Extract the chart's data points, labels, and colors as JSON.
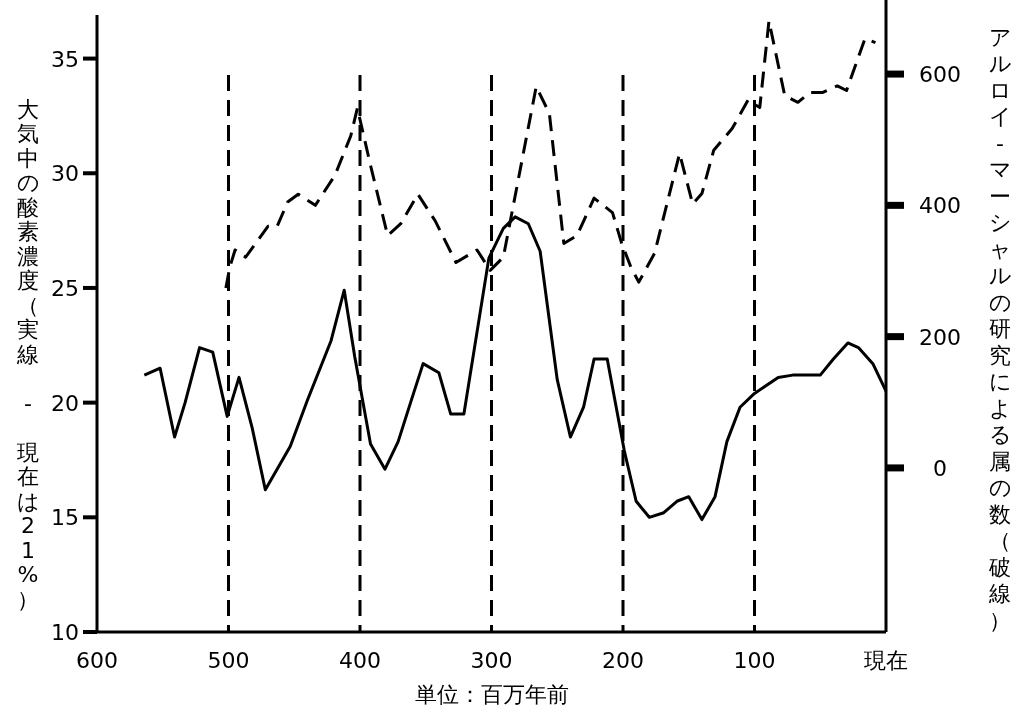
{
  "chart_data": {
    "type": "line",
    "xlabel": "単位：百万年前",
    "ylabel": "大気中の酸素濃度（実線 - 現在は21%）",
    "y2label": "アルロイ-マーシャルの研究による属の数（破線）",
    "xlim": [
      600,
      0
    ],
    "xticks": [
      600,
      500,
      400,
      300,
      200,
      100,
      {
        "value": 0,
        "label": "現在"
      }
    ],
    "ylim": [
      10,
      36.9
    ],
    "yticks": [
      10,
      15,
      20,
      25,
      30,
      35
    ],
    "y2lim": [
      -250,
      690
    ],
    "y2ticks": [
      0,
      200,
      400,
      600
    ],
    "grid": false,
    "marker": "none",
    "ref_lines": [
      {
        "axis": "x",
        "value": 500,
        "line_style": "dashed",
        "color": "#000000"
      },
      {
        "axis": "x",
        "value": 400,
        "line_style": "dashed",
        "color": "#000000"
      },
      {
        "axis": "x",
        "value": 300,
        "line_style": "dashed",
        "color": "#000000"
      },
      {
        "axis": "x",
        "value": 200,
        "line_style": "dashed",
        "color": "#000000"
      },
      {
        "axis": "x",
        "value": 100,
        "line_style": "dashed",
        "color": "#000000"
      }
    ],
    "series": [
      {
        "color": "#000000",
        "line_style": "solid",
        "x": [
          564,
          552,
          541,
          533,
          522,
          512,
          501,
          492,
          482,
          472,
          453,
          440,
          422,
          412,
          404,
          392,
          381,
          371,
          361,
          352,
          340,
          331,
          321,
          302,
          291,
          282,
          272,
          263,
          250,
          240,
          230,
          222,
          212,
          199,
          190,
          180,
          169,
          159,
          150,
          140,
          130,
          121,
          111,
          100,
          82,
          71,
          50,
          40,
          29,
          21,
          10,
          0
        ],
        "values": [
          21.2,
          21.5,
          18.5,
          20.0,
          22.4,
          22.2,
          19.4,
          21.1,
          18.9,
          16.2,
          18.1,
          20.1,
          22.7,
          24.9,
          22.0,
          18.2,
          17.1,
          18.3,
          20.1,
          21.7,
          21.3,
          19.5,
          19.5,
          26.3,
          27.6,
          28.1,
          27.8,
          26.6,
          21.0,
          18.5,
          19.8,
          21.9,
          21.9,
          17.9,
          15.7,
          15.0,
          15.2,
          15.7,
          15.9,
          14.9,
          15.9,
          18.3,
          19.8,
          20.4,
          21.1,
          21.2,
          21.2,
          21.9,
          22.6,
          22.4,
          21.7,
          20.5
        ]
      },
      {
        "color": "#000000",
        "line_style": "dashed",
        "axis": "y2",
        "x": [
          502,
          499,
          495,
          487,
          470,
          463,
          455,
          447,
          434,
          419,
          407,
          402,
          392,
          379,
          369,
          356,
          343,
          327,
          311,
          301,
          291,
          266,
          256,
          245,
          235,
          222,
          208,
          201,
          194,
          188,
          176,
          157,
          147,
          140,
          131,
          117,
          105,
          96,
          89,
          77,
          67,
          58,
          48,
          37,
          30,
          16,
          8
        ],
        "values": [
          274,
          306,
          332,
          321,
          368,
          368,
          405,
          417,
          400,
          446,
          506,
          548,
          461,
          354,
          372,
          417,
          377,
          313,
          332,
          301,
          321,
          581,
          540,
          342,
          354,
          411,
          389,
          342,
          306,
          283,
          327,
          479,
          402,
          418,
          484,
          517,
          560,
          549,
          681,
          567,
          557,
          572,
          572,
          582,
          575,
          654,
          648
        ]
      }
    ]
  }
}
